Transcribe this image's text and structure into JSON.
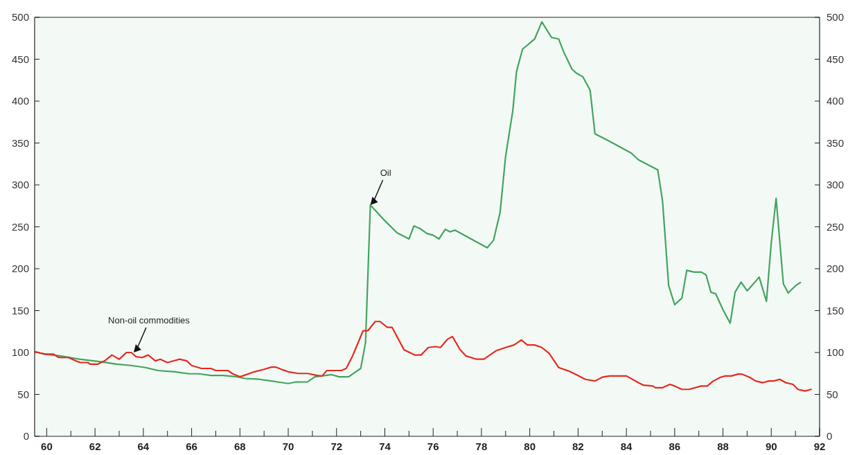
{
  "chart_data": {
    "type": "line",
    "xlim": [
      59.5,
      92
    ],
    "xticks": [
      60,
      {
        "value": 61,
        "label": null
      },
      62,
      {
        "value": 63,
        "label": null
      },
      64,
      {
        "value": 65,
        "label": null
      },
      66,
      {
        "value": 67,
        "label": null
      },
      68,
      {
        "value": 69,
        "label": null
      },
      70,
      {
        "value": 71,
        "label": null
      },
      72,
      {
        "value": 73,
        "label": null
      },
      74,
      {
        "value": 75,
        "label": null
      },
      76,
      {
        "value": 77,
        "label": null
      },
      78,
      {
        "value": 79,
        "label": null
      },
      80,
      {
        "value": 81,
        "label": null
      },
      82,
      {
        "value": 83,
        "label": null
      },
      84,
      {
        "value": 85,
        "label": null
      },
      86,
      {
        "value": 87,
        "label": null
      },
      88,
      {
        "value": 89,
        "label": null
      },
      90,
      {
        "value": 91,
        "label": null
      },
      92
    ],
    "ylim": [
      0,
      500
    ],
    "yticks": [
      0,
      50,
      100,
      150,
      200,
      250,
      300,
      350,
      400,
      450,
      500
    ],
    "y2lim": [
      0,
      500
    ],
    "y2ticks": [
      0,
      50,
      100,
      150,
      200,
      250,
      300,
      350,
      400,
      450,
      500
    ],
    "grid": false,
    "marker": "none",
    "line_style": "solid",
    "annotations": [
      {
        "text": "Oil",
        "x": 73.4,
        "y": 276
      },
      {
        "text": "Non-oil commodities",
        "x": 63.6,
        "y": 100
      }
    ],
    "series": [
      {
        "color": "#43a35f",
        "x": [
          59.5,
          59.9,
          60.55,
          61.35,
          62.25,
          62.9,
          63.5,
          64.1,
          64.6,
          65.3,
          65.9,
          66.3,
          66.8,
          67.3,
          67.9,
          68.2,
          68.8,
          69.3,
          69.6,
          70.0,
          70.3,
          70.8,
          71.1,
          71.4,
          71.8,
          72.1,
          72.5,
          73.0,
          73.2,
          73.4,
          73.94,
          74.5,
          75.0,
          75.2,
          75.45,
          75.74,
          76.0,
          76.24,
          76.5,
          76.7,
          76.9,
          78.24,
          78.5,
          78.77,
          79.0,
          79.3,
          79.45,
          79.7,
          80.2,
          80.5,
          80.9,
          81.2,
          81.4,
          81.75,
          81.95,
          82.2,
          82.5,
          82.7,
          83.3,
          84.2,
          84.5,
          85.3,
          85.5,
          85.75,
          86.0,
          86.3,
          86.5,
          86.8,
          87.1,
          87.3,
          87.5,
          87.7,
          88.0,
          88.3,
          88.5,
          88.75,
          89.0,
          89.2,
          89.5,
          89.8,
          90.0,
          90.2,
          90.5,
          90.7,
          91.0,
          91.2
        ],
        "values": [
          101,
          98,
          96,
          92,
          89,
          86,
          84.5,
          82,
          78.5,
          77,
          74.6,
          74.6,
          72.6,
          72.6,
          71,
          69,
          68,
          66,
          64.7,
          63,
          64.7,
          65,
          71,
          72,
          73.6,
          71,
          71,
          81,
          111.5,
          276,
          259,
          243,
          235.5,
          251,
          248,
          242,
          240,
          235.5,
          247,
          244,
          246,
          225,
          234,
          267,
          334,
          389,
          435,
          462,
          474,
          494.5,
          476,
          474,
          459,
          438,
          433,
          429,
          413,
          361,
          352,
          338,
          330,
          318,
          280,
          180,
          157,
          165,
          198,
          196,
          196,
          192.6,
          172,
          170,
          151,
          135,
          172,
          184,
          173.6,
          180,
          190,
          161,
          231,
          284,
          182,
          171,
          179.6,
          183.5
        ]
      },
      {
        "color": "#e8291e",
        "x": [
          59.5,
          59.94,
          60.28,
          60.5,
          60.9,
          61.2,
          61.4,
          61.7,
          61.8,
          62.1,
          62.4,
          62.7,
          63.0,
          63.3,
          63.5,
          63.7,
          63.95,
          64.2,
          64.5,
          64.7,
          65.0,
          65.5,
          65.8,
          66.0,
          66.4,
          66.8,
          67.0,
          67.5,
          67.7,
          68.0,
          68.6,
          69.0,
          69.3,
          69.5,
          69.8,
          70.0,
          70.4,
          70.8,
          71.2,
          71.4,
          71.6,
          72.2,
          72.4,
          72.65,
          73.1,
          73.3,
          73.6,
          73.8,
          74.1,
          74.3,
          74.8,
          75.25,
          75.5,
          75.8,
          76.1,
          76.3,
          76.6,
          76.8,
          77.1,
          77.35,
          77.8,
          78.1,
          78.6,
          79.0,
          79.35,
          79.65,
          79.9,
          80.2,
          80.5,
          80.8,
          81.2,
          81.6,
          81.9,
          82.3,
          82.7,
          83.0,
          83.3,
          84.0,
          84.5,
          84.7,
          85.1,
          85.2,
          85.5,
          85.8,
          86.0,
          86.3,
          86.6,
          87.1,
          87.35,
          87.6,
          87.9,
          88.1,
          88.35,
          88.65,
          88.8,
          89.1,
          89.35,
          89.65,
          89.9,
          90.1,
          90.35,
          90.6,
          90.9,
          91.1,
          91.4,
          91.65
        ],
        "values": [
          101,
          98,
          98,
          94,
          94,
          90,
          88,
          88,
          86,
          86,
          90,
          97,
          92,
          100,
          100,
          95,
          94,
          97,
          90,
          92,
          88,
          92,
          90,
          84.5,
          81,
          81,
          78.5,
          78.5,
          74.6,
          71,
          77,
          80,
          82.5,
          82.5,
          79,
          77,
          75,
          75,
          72.6,
          72,
          78.5,
          78.5,
          81,
          95,
          126,
          126,
          137,
          137,
          130,
          130,
          103,
          97,
          97,
          106,
          107,
          106,
          116,
          119,
          104,
          96,
          92,
          92,
          102,
          106,
          109,
          115,
          109,
          109,
          106,
          99,
          82,
          78,
          74,
          68,
          66,
          70.5,
          72,
          72,
          64,
          61,
          60,
          58,
          58,
          62,
          60,
          56,
          56,
          60,
          60,
          66,
          70.5,
          72,
          72,
          74.5,
          74,
          70.5,
          66,
          64,
          66,
          66,
          68,
          64,
          62,
          56,
          54,
          56
        ]
      }
    ]
  }
}
